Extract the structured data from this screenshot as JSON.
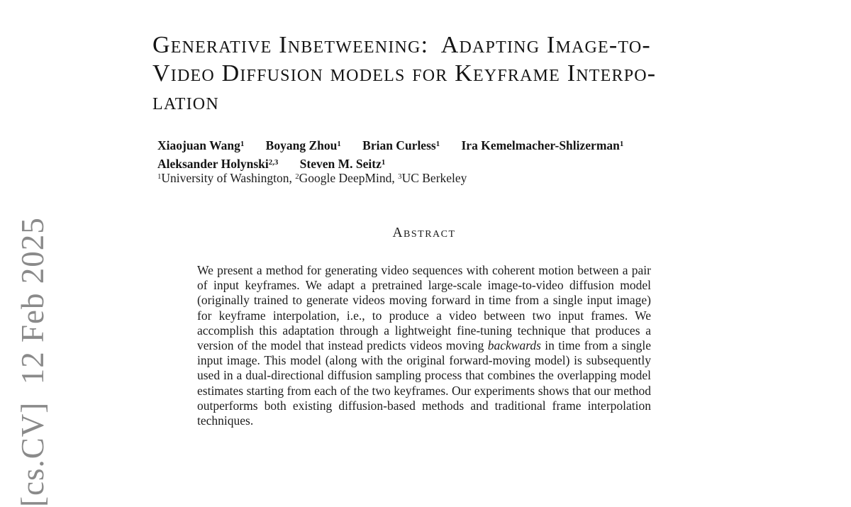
{
  "paper": {
    "title_lines": [
      "Generative Inbetweening:  Adapting Image-to-",
      "Video Diffusion models for Keyframe Interpo-",
      "lation"
    ],
    "authors_line1": [
      {
        "name": "Xiaojuan Wang",
        "sup": "1"
      },
      {
        "name": "Boyang Zhou",
        "sup": "1"
      },
      {
        "name": "Brian Curless",
        "sup": "1"
      },
      {
        "name": "Ira Kemelmacher-Shlizerman",
        "sup": "1"
      }
    ],
    "authors_line2": [
      {
        "name": "Aleksander Holynski",
        "sup": "2,3"
      },
      {
        "name": "Steven M. Seitz",
        "sup": "1"
      }
    ],
    "affiliations": [
      {
        "sup": "1",
        "text": "University of Washington, "
      },
      {
        "sup": "2",
        "text": "Google DeepMind, "
      },
      {
        "sup": "3",
        "text": "UC Berkeley"
      }
    ],
    "abstract": {
      "heading": "Abstract",
      "body_before_italic": "We present a method for generating video sequences with coherent motion between a pair of input keyframes. We adapt a pretrained large-scale image-to-video diffusion model (originally trained to generate videos moving forward in time from a single input image) for keyframe interpolation, i.e., to produce a video between two input frames. We accomplish this adaptation through a lightweight fine-tuning technique that produces a version of the model that instead predicts videos moving ",
      "italic_word": "backwards",
      "body_after_italic": " in time from a single input image. This model (along with the original forward-moving model) is subsequently used in a dual-directional diffusion sampling process that combines the overlapping model estimates starting from each of the two keyframes. Our experiments shows that our method outperforms both existing diffusion-based methods and traditional frame interpolation techniques."
    },
    "arxiv_stamp": {
      "text": "[cs.CV]  12 Feb 2025",
      "color": "#8a8a8a"
    }
  }
}
